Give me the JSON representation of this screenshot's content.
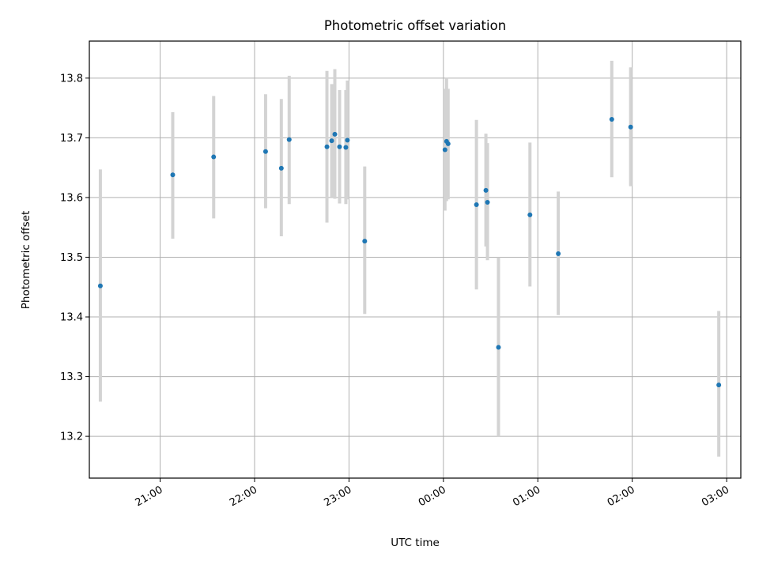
{
  "chart_data": {
    "type": "scatter",
    "title": "Photometric offset variation",
    "xlabel": "UTC time",
    "ylabel": "Photometric offset",
    "x_unit": "UTC time (hours, after-midnight values shown beyond 24:00)",
    "xlim": [
      "20:15",
      "03:09"
    ],
    "ylim": [
      13.13,
      13.862
    ],
    "x_ticks": [
      "21:00",
      "22:00",
      "23:00",
      "00:00",
      "01:00",
      "02:00",
      "03:00"
    ],
    "y_ticks": [
      "13.2",
      "13.3",
      "13.4",
      "13.5",
      "13.6",
      "13.7",
      "13.8"
    ],
    "grid": true,
    "legend": "none",
    "colors": {
      "point": "#1f77b4",
      "errorbar": "#d3d3d3",
      "grid": "#b0b0b0"
    },
    "points": [
      {
        "x": "20:22",
        "y": 13.452,
        "ylow": 13.258,
        "yhigh": 13.647
      },
      {
        "x": "21:08",
        "y": 13.638,
        "ylow": 13.531,
        "yhigh": 13.743
      },
      {
        "x": "21:34",
        "y": 13.668,
        "ylow": 13.565,
        "yhigh": 13.77
      },
      {
        "x": "22:07",
        "y": 13.677,
        "ylow": 13.582,
        "yhigh": 13.773
      },
      {
        "x": "22:17",
        "y": 13.649,
        "ylow": 13.535,
        "yhigh": 13.765
      },
      {
        "x": "22:22",
        "y": 13.697,
        "ylow": 13.589,
        "yhigh": 13.804
      },
      {
        "x": "22:46",
        "y": 13.685,
        "ylow": 13.558,
        "yhigh": 13.812
      },
      {
        "x": "22:49",
        "y": 13.695,
        "ylow": 13.6,
        "yhigh": 13.79
      },
      {
        "x": "22:51",
        "y": 13.706,
        "ylow": 13.598,
        "yhigh": 13.815
      },
      {
        "x": "22:54",
        "y": 13.685,
        "ylow": 13.59,
        "yhigh": 13.78
      },
      {
        "x": "22:58",
        "y": 13.684,
        "ylow": 13.589,
        "yhigh": 13.78
      },
      {
        "x": "22:59",
        "y": 13.696,
        "ylow": 13.597,
        "yhigh": 13.796
      },
      {
        "x": "23:10",
        "y": 13.527,
        "ylow": 13.405,
        "yhigh": 13.652
      },
      {
        "x": "00:01",
        "y": 13.68,
        "ylow": 13.578,
        "yhigh": 13.782
      },
      {
        "x": "00:02",
        "y": 13.694,
        "ylow": 13.594,
        "yhigh": 13.8
      },
      {
        "x": "00:03",
        "y": 13.69,
        "ylow": 13.597,
        "yhigh": 13.782
      },
      {
        "x": "00:21",
        "y": 13.588,
        "ylow": 13.446,
        "yhigh": 13.73
      },
      {
        "x": "00:27",
        "y": 13.612,
        "ylow": 13.518,
        "yhigh": 13.707
      },
      {
        "x": "00:28",
        "y": 13.592,
        "ylow": 13.495,
        "yhigh": 13.691
      },
      {
        "x": "00:35",
        "y": 13.349,
        "ylow": 13.2,
        "yhigh": 13.5
      },
      {
        "x": "00:55",
        "y": 13.571,
        "ylow": 13.451,
        "yhigh": 13.692
      },
      {
        "x": "01:13",
        "y": 13.506,
        "ylow": 13.403,
        "yhigh": 13.61
      },
      {
        "x": "01:47",
        "y": 13.731,
        "ylow": 13.634,
        "yhigh": 13.829
      },
      {
        "x": "01:59",
        "y": 13.718,
        "ylow": 13.619,
        "yhigh": 13.818
      },
      {
        "x": "02:55",
        "y": 13.286,
        "ylow": 13.166,
        "yhigh": 13.41
      }
    ]
  }
}
